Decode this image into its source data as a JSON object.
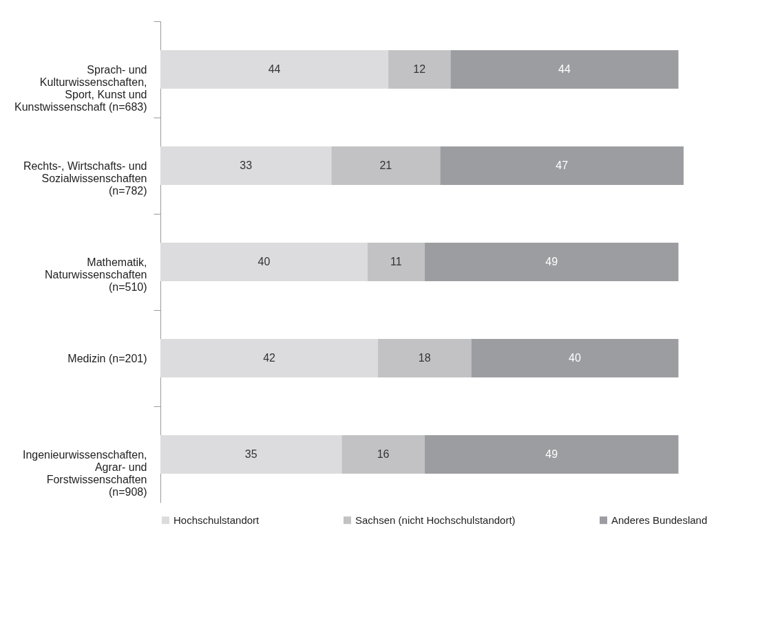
{
  "chart_data": {
    "type": "bar",
    "orientation": "horizontal",
    "stacked": true,
    "data_labels": true,
    "tick_labels": "y",
    "legend": "bottom",
    "grid": false,
    "categories": [
      "Sprach- und Kulturwissenschaften, Sport, Kunst und Kunstwissenschaft (n=683)",
      "Rechts-, Wirtschafts- und Sozialwissenschaften (n=782)",
      "Mathematik, Naturwissenschaften (n=510)",
      "Medizin (n=201)",
      "Ingenieurwissenschaften, Agrar- und Forstwissenschaften (n=908)"
    ],
    "series": [
      {
        "name": "Hochschulstandort",
        "color": "#dcdcde",
        "values": [
          44,
          33,
          40,
          42,
          35
        ]
      },
      {
        "name": "Sachsen (nicht Hochschulstandort)",
        "color": "#c2c2c4",
        "values": [
          12,
          21,
          11,
          18,
          16
        ]
      },
      {
        "name": "Anderes Bundesland",
        "color": "#9c9da1",
        "values": [
          44,
          47,
          49,
          40,
          49
        ]
      }
    ]
  }
}
